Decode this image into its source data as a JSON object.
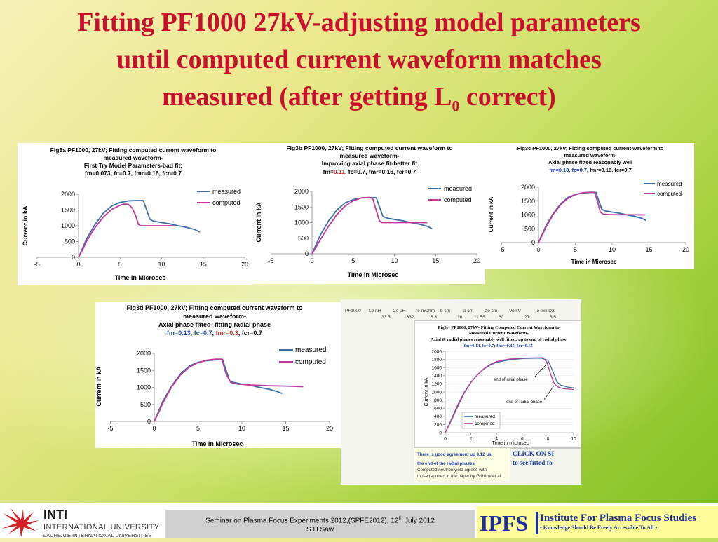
{
  "slide": {
    "title_line1": "Fitting PF1000 27kV-adjusting model parameters",
    "title_line2": "until computed current waveform matches",
    "title_line3_pre": "measured (after getting L",
    "title_line3_sub": "0",
    "title_line3_post": " correct)"
  },
  "colors": {
    "title": "#c8102e",
    "measured": "#3a6fa8",
    "computed": "#c0399a",
    "highlight_blue": "#1a3fb0",
    "highlight_red": "#d8202a"
  },
  "fig_a": {
    "title1": "Fig3a PF1000, 27kV; Fitting computed current waveform to",
    "title2": "measured waveform-",
    "title3": "First Try Model Parameters-bad fit;",
    "title4": "fm=0.073, fc=0.7, fmr=0.16, fcr=0.7"
  },
  "fig_b": {
    "title1": "Fig3b PF1000, 27kV; Fitting computed current waveform to",
    "title2": "measured waveform-",
    "title3": "Improving axial phase fit-better fit",
    "fm_pre": "fm=",
    "fm_val": "0.11",
    "rest": ", fc=0.7, fmr=0.16, fcr=0.7"
  },
  "fig_c": {
    "title1": "Fig3c PF1000, 27kV; Fitting computed current waveform to",
    "title2": "measured waveform-",
    "title3": "Axial phase fitted reasonably well",
    "hl": "fm=0.13, fc=0.7",
    "rest": ", fmr=0.16, fcr=0.7"
  },
  "fig_d": {
    "title1": "Fig3d PF1000, 27kV; Fitting computed current waveform to",
    "title2": "measured waveform-",
    "title3": "Axial phase fitted-      fitting radial phase",
    "hl": "fm=0.13, fc=0.7",
    "sep": ", ",
    "fmr": "fmr=0.3",
    "rest": ", fcr=0.7"
  },
  "fig_e": {
    "param_labels": [
      "PF1000",
      "Lo nH",
      "Co uF",
      "ro mOhm",
      "b cm",
      "a cm",
      "zo cm",
      "Vo kV",
      "Po torr D2"
    ],
    "param_values": [
      "33.5",
      "1332",
      "6.3",
      "16",
      "11.55",
      "60",
      "27",
      "3.5"
    ],
    "title1": "Fig3e: PF1000, 27kV- Fitting Computed Current Waveform to",
    "title2": "Measured Current Waveform-",
    "title3": "Axial & radial phases reasonably well fitted; up to end of radial phase",
    "title4": "fm=0.13, fc=0.7; fmr=0.35, fcr=0.65",
    "ann_axial": "end of axial phase",
    "ann_radial": "end of radial phase",
    "ylabel": "Current in kA",
    "xlabel": "Time in microsec",
    "legend_measured": "measured",
    "legend_computed": "computed",
    "note1": "There is good agreement up 9.12 us,",
    "note2": "the end of the radial phases",
    "note3": "Computed neutron yield agrees with",
    "note4": "those reported in the paper by Gribkov et al.",
    "click1": "CLICK ON SI",
    "click2": "to see fitted fo"
  },
  "common": {
    "ylabel": "Current in kA",
    "xlabel": "Time in Microsec",
    "legend_measured": "measured",
    "legend_computed": "computed"
  },
  "footer": {
    "inti1": "INTI",
    "inti2": "INTERNATIONAL UNIVERSITY",
    "inti3": "LAUREATE INTERNATIONAL UNIVERSITIES",
    "seminar_pre": "Seminar on Plasma Focus Experiments 2012,(SPFE2012), 12",
    "seminar_sup": "th",
    "seminar_post": " July 2012",
    "author": "S H Saw",
    "ipfs": "IPFS",
    "ipfs_name": "Institute For Plasma Focus Studies",
    "ipfs_tag": "• Knowledge Should Be Freely Accessible To All •"
  },
  "chart_data": [
    {
      "id": "fig3a",
      "type": "line",
      "xlabel": "Time in Microsec",
      "ylabel": "Current in kA",
      "xlim": [
        -5,
        20
      ],
      "ylim": [
        0,
        2000
      ],
      "xticks": [
        -5,
        0,
        5,
        10,
        15,
        20
      ],
      "yticks": [
        0,
        500,
        1000,
        1500,
        2000
      ],
      "legend": "right",
      "series": [
        {
          "name": "measured",
          "points": [
            [
              0,
              0
            ],
            [
              0.5,
              300
            ],
            [
              1,
              600
            ],
            [
              2,
              1050
            ],
            [
              3,
              1400
            ],
            [
              4,
              1630
            ],
            [
              5,
              1740
            ],
            [
              6,
              1790
            ],
            [
              7,
              1800
            ],
            [
              7.8,
              1800
            ],
            [
              8.2,
              1500
            ],
            [
              8.6,
              1200
            ],
            [
              9,
              1150
            ],
            [
              10,
              1100
            ],
            [
              11,
              1060
            ],
            [
              12,
              1000
            ],
            [
              13,
              950
            ],
            [
              14,
              880
            ],
            [
              14.6,
              800
            ]
          ]
        },
        {
          "name": "computed",
          "points": [
            [
              0,
              0
            ],
            [
              0.5,
              250
            ],
            [
              1,
              520
            ],
            [
              2,
              950
            ],
            [
              3,
              1280
            ],
            [
              4,
              1520
            ],
            [
              5,
              1650
            ],
            [
              5.5,
              1690
            ],
            [
              6,
              1680
            ],
            [
              6.5,
              1550
            ],
            [
              6.9,
              1300
            ],
            [
              7.2,
              1050
            ],
            [
              7.5,
              1000
            ],
            [
              10,
              1000
            ],
            [
              11.5,
              1000
            ]
          ]
        }
      ]
    },
    {
      "id": "fig3b",
      "type": "line",
      "xlabel": "Time in Microsec",
      "ylabel": "Current in kA",
      "xlim": [
        -5,
        20
      ],
      "ylim": [
        0,
        2000
      ],
      "xticks": [
        -5,
        0,
        5,
        10,
        15,
        20
      ],
      "yticks": [
        0,
        500,
        1000,
        1500,
        2000
      ],
      "legend": "right",
      "series": [
        {
          "name": "measured",
          "points": [
            [
              0,
              0
            ],
            [
              0.5,
              300
            ],
            [
              1,
              600
            ],
            [
              2,
              1050
            ],
            [
              3,
              1400
            ],
            [
              4,
              1630
            ],
            [
              5,
              1740
            ],
            [
              6,
              1790
            ],
            [
              7,
              1800
            ],
            [
              7.8,
              1800
            ],
            [
              8.2,
              1500
            ],
            [
              8.6,
              1200
            ],
            [
              9,
              1150
            ],
            [
              10,
              1100
            ],
            [
              11,
              1060
            ],
            [
              12,
              1000
            ],
            [
              13,
              950
            ],
            [
              14,
              880
            ],
            [
              14.6,
              800
            ]
          ]
        },
        {
          "name": "computed",
          "points": [
            [
              0,
              0
            ],
            [
              0.5,
              220
            ],
            [
              1,
              450
            ],
            [
              2,
              880
            ],
            [
              3,
              1250
            ],
            [
              4,
              1530
            ],
            [
              5,
              1700
            ],
            [
              6,
              1790
            ],
            [
              7,
              1810
            ],
            [
              7.4,
              1750
            ],
            [
              7.9,
              1300
            ],
            [
              8.2,
              1050
            ],
            [
              8.5,
              1000
            ],
            [
              10,
              1000
            ],
            [
              14,
              1000
            ]
          ]
        }
      ]
    },
    {
      "id": "fig3c",
      "type": "line",
      "xlabel": "Time in Microsec",
      "ylabel": "Current in kA",
      "xlim": [
        -5,
        20
      ],
      "ylim": [
        0,
        2000
      ],
      "xticks": [
        -5,
        0,
        5,
        10,
        15,
        20
      ],
      "yticks": [
        0,
        500,
        1000,
        1500,
        2000
      ],
      "legend": "right",
      "series": [
        {
          "name": "measured",
          "points": [
            [
              0,
              0
            ],
            [
              0.5,
              300
            ],
            [
              1,
              600
            ],
            [
              2,
              1050
            ],
            [
              3,
              1400
            ],
            [
              4,
              1630
            ],
            [
              5,
              1740
            ],
            [
              6,
              1790
            ],
            [
              7,
              1810
            ],
            [
              7.8,
              1810
            ],
            [
              8.2,
              1500
            ],
            [
              8.6,
              1200
            ],
            [
              9,
              1150
            ],
            [
              10,
              1100
            ],
            [
              11,
              1060
            ],
            [
              12,
              1000
            ],
            [
              13,
              950
            ],
            [
              14,
              880
            ],
            [
              14.6,
              800
            ]
          ]
        },
        {
          "name": "computed",
          "points": [
            [
              0,
              0
            ],
            [
              0.5,
              260
            ],
            [
              1,
              550
            ],
            [
              2,
              1020
            ],
            [
              3,
              1370
            ],
            [
              4,
              1600
            ],
            [
              5,
              1730
            ],
            [
              6,
              1800
            ],
            [
              7,
              1820
            ],
            [
              7.6,
              1820
            ],
            [
              8,
              1500
            ],
            [
              8.4,
              1100
            ],
            [
              8.8,
              1020
            ],
            [
              10,
              1010
            ],
            [
              14.5,
              1000
            ]
          ]
        }
      ]
    },
    {
      "id": "fig3d",
      "type": "line",
      "xlabel": "Time in Microsec",
      "ylabel": "Current in kA",
      "xlim": [
        -5,
        20
      ],
      "ylim": [
        0,
        2000
      ],
      "xticks": [
        -5,
        0,
        5,
        10,
        15,
        20
      ],
      "yticks": [
        0,
        500,
        1000,
        1500,
        2000
      ],
      "legend": "right",
      "series": [
        {
          "name": "measured",
          "points": [
            [
              0,
              0
            ],
            [
              0.5,
              300
            ],
            [
              1,
              600
            ],
            [
              2,
              1050
            ],
            [
              3,
              1400
            ],
            [
              4,
              1630
            ],
            [
              5,
              1740
            ],
            [
              6,
              1790
            ],
            [
              7,
              1810
            ],
            [
              7.8,
              1820
            ],
            [
              8.2,
              1500
            ],
            [
              8.6,
              1200
            ],
            [
              9,
              1150
            ],
            [
              10,
              1100
            ],
            [
              11,
              1060
            ],
            [
              12,
              1000
            ],
            [
              13,
              950
            ],
            [
              14,
              880
            ],
            [
              14.6,
              820
            ]
          ]
        },
        {
          "name": "computed",
          "points": [
            [
              0,
              0
            ],
            [
              0.5,
              260
            ],
            [
              1,
              550
            ],
            [
              2,
              1020
            ],
            [
              3,
              1370
            ],
            [
              4,
              1600
            ],
            [
              5,
              1730
            ],
            [
              6,
              1800
            ],
            [
              7,
              1830
            ],
            [
              7.7,
              1830
            ],
            [
              8.2,
              1400
            ],
            [
              8.7,
              1150
            ],
            [
              9.5,
              1100
            ],
            [
              11,
              1070
            ],
            [
              13,
              1050
            ],
            [
              15,
              1040
            ],
            [
              17,
              1020
            ]
          ]
        }
      ]
    },
    {
      "id": "fig3e",
      "type": "line",
      "xlabel": "Time in microsec",
      "ylabel": "Current in kA",
      "xlim": [
        0,
        10
      ],
      "ylim": [
        0,
        2000
      ],
      "xticks": [
        0,
        2,
        4,
        6,
        8,
        10
      ],
      "yticks": [
        0,
        200,
        400,
        600,
        800,
        1000,
        1200,
        1400,
        1600,
        1800,
        2000
      ],
      "legend": "bottom-left",
      "series": [
        {
          "name": "measured",
          "points": [
            [
              0,
              0
            ],
            [
              0.3,
              200
            ],
            [
              0.6,
              420
            ],
            [
              1,
              700
            ],
            [
              1.5,
              1000
            ],
            [
              2,
              1240
            ],
            [
              2.5,
              1420
            ],
            [
              3,
              1560
            ],
            [
              3.5,
              1660
            ],
            [
              4,
              1730
            ],
            [
              5,
              1790
            ],
            [
              6,
              1820
            ],
            [
              7,
              1830
            ],
            [
              7.5,
              1830
            ],
            [
              8,
              1780
            ],
            [
              8.4,
              1500
            ],
            [
              8.7,
              1250
            ],
            [
              9,
              1170
            ],
            [
              9.5,
              1120
            ],
            [
              10,
              1100
            ]
          ]
        },
        {
          "name": "computed",
          "points": [
            [
              0,
              0
            ],
            [
              0.3,
              180
            ],
            [
              0.6,
              380
            ],
            [
              1,
              660
            ],
            [
              1.5,
              980
            ],
            [
              2,
              1230
            ],
            [
              2.5,
              1420
            ],
            [
              3,
              1570
            ],
            [
              3.5,
              1680
            ],
            [
              4,
              1750
            ],
            [
              5,
              1810
            ],
            [
              6,
              1830
            ],
            [
              7,
              1840
            ],
            [
              7.6,
              1840
            ],
            [
              7.9,
              1750
            ],
            [
              8.2,
              1450
            ],
            [
              8.5,
              1200
            ],
            [
              8.8,
              1120
            ],
            [
              9.2,
              1080
            ],
            [
              10,
              1060
            ]
          ]
        }
      ]
    }
  ]
}
